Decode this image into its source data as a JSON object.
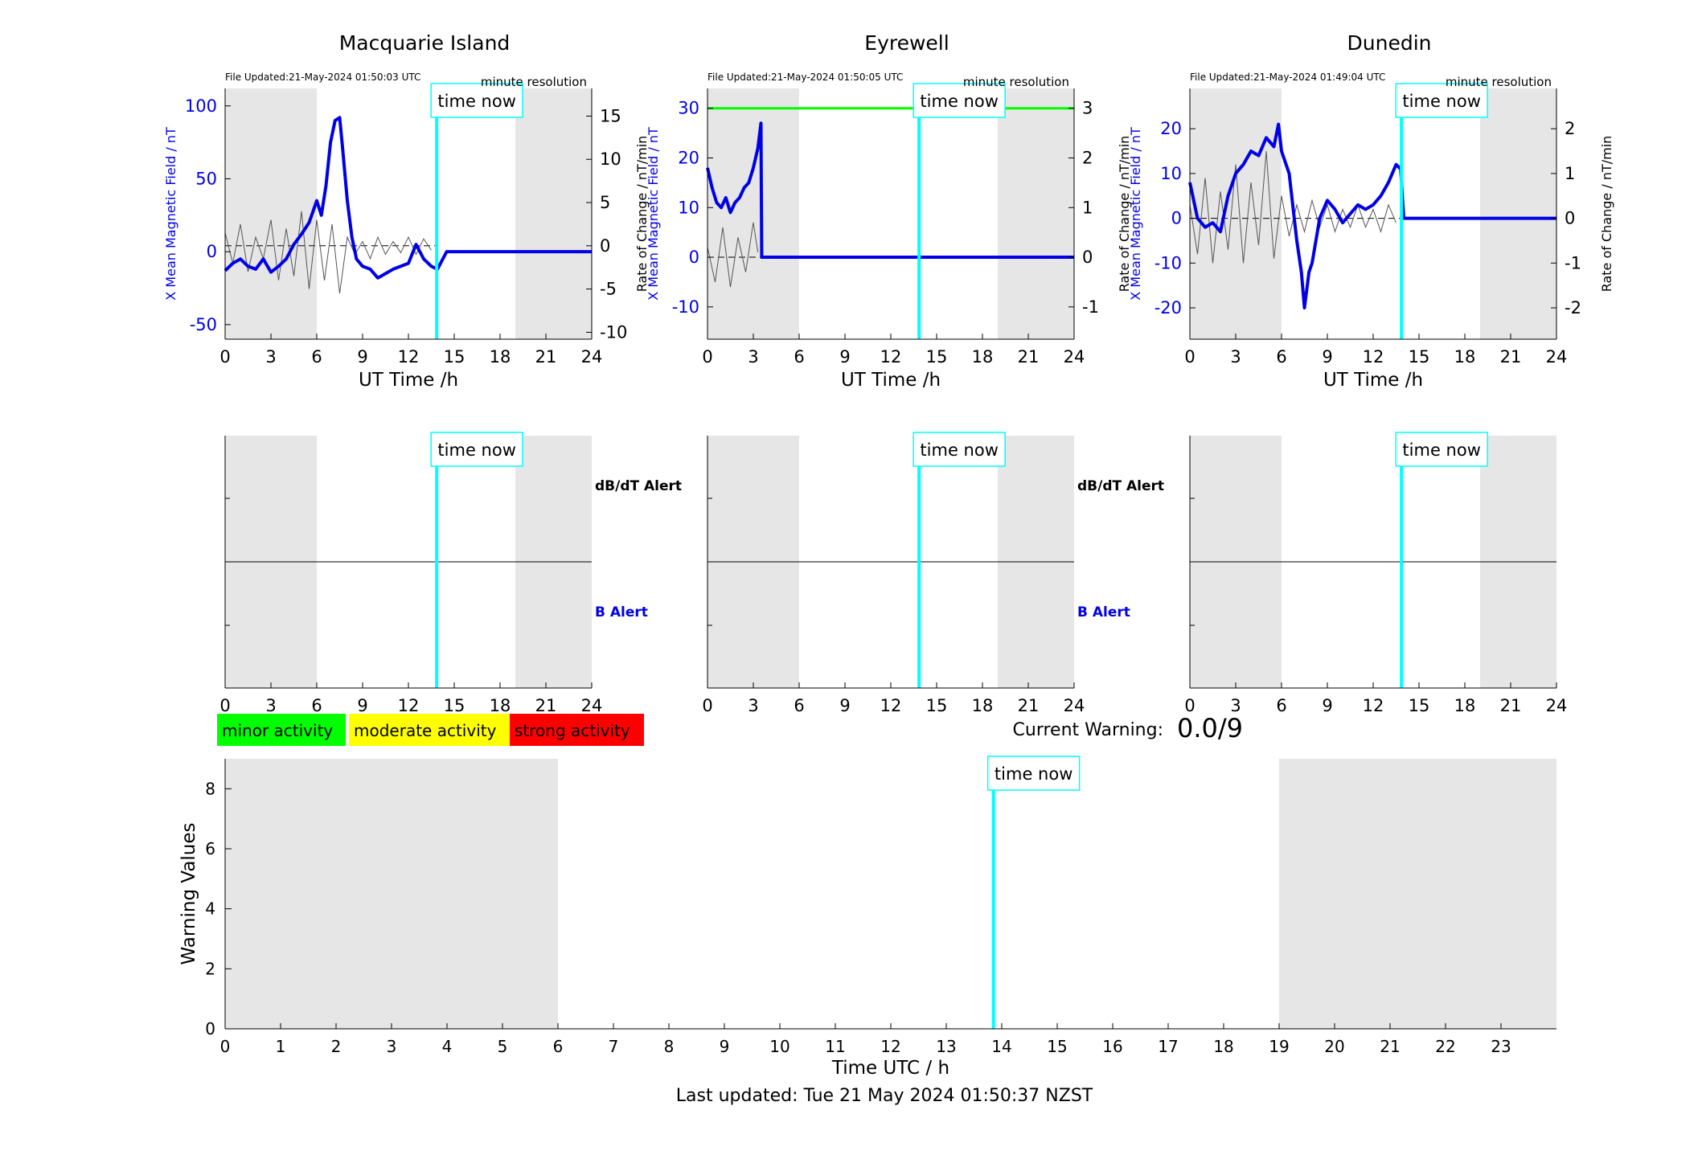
{
  "labels": {
    "time_now": "time now",
    "dbdt_alert": "dB/dT Alert",
    "b_alert": "B Alert",
    "current_warning_label": "Current Warning:",
    "current_warning_value": "0.0/9",
    "last_updated": "Last updated: Tue 21 May 2024 01:50:37 NZST",
    "minute_resolution": "minute resolution",
    "ut_axis": "UT Time /h",
    "left_axis": "X Mean Magnetic Field / nT",
    "right_axis": "Rate of Change / nT/min"
  },
  "activity_legend": [
    {
      "label": "minor activity",
      "color": "#00ff00"
    },
    {
      "label": "moderate activity",
      "color": "#ffff00"
    },
    {
      "label": "strong activity",
      "color": "#ff0000"
    }
  ],
  "colors": {
    "field_line": "#0000e6",
    "rate_line": "#555555",
    "time_now_line": "#00ffff",
    "night_shade": "#e6e6e6",
    "threshold_line": "#00ff00"
  },
  "chart_data": [
    {
      "type": "line",
      "title": "Macquarie Island",
      "file_updated": "File Updated:21-May-2024 01:50:03 UTC",
      "xlabel": "UT Time /h",
      "ylabel": "X Mean Magnetic Field / nT",
      "ylabel_right": "Rate of Change / nT/min",
      "xlim": [
        0,
        24
      ],
      "ylim": [
        -60,
        112
      ],
      "ylim_right": [
        -10.8,
        18.2
      ],
      "xticks": [
        0,
        3,
        6,
        9,
        12,
        15,
        18,
        21,
        24
      ],
      "yticks": [
        -50,
        0,
        50,
        100
      ],
      "yticks_right": [
        -10,
        -5,
        0,
        5,
        10,
        15
      ],
      "night_shading": [
        [
          0,
          6
        ],
        [
          19,
          24
        ]
      ],
      "time_now": 13.85,
      "series": [
        {
          "values_x": [
            0,
            0.5,
            1,
            1.5,
            2,
            2.5,
            3,
            3.5,
            4,
            4.5,
            5,
            5.5,
            6,
            6.3,
            6.6,
            6.9,
            7.2,
            7.5,
            7.7,
            8,
            8.3,
            8.6,
            9,
            9.5,
            10,
            10.5,
            11,
            11.5,
            12,
            12.5,
            13,
            13.5,
            13.9,
            14.5,
            24
          ],
          "values": [
            -13,
            -8,
            -5,
            -10,
            -12,
            -5,
            -14,
            -10,
            -5,
            5,
            12,
            20,
            35,
            25,
            45,
            75,
            90,
            92,
            70,
            35,
            10,
            -5,
            -10,
            -12,
            -18,
            -15,
            -12,
            -10,
            -8,
            5,
            -5,
            -10,
            -12,
            0,
            0
          ]
        },
        {
          "values_x": [
            0,
            0.5,
            1,
            1.5,
            2,
            2.5,
            3,
            3.5,
            4,
            4.5,
            5,
            5.5,
            6,
            6.5,
            7,
            7.5,
            8,
            8.5,
            9,
            9.5,
            10,
            10.5,
            11,
            11.5,
            12,
            12.5,
            13,
            13.5
          ],
          "values": [
            1.5,
            -2,
            2.5,
            -3,
            1,
            -1.5,
            3,
            -4,
            2,
            -3.5,
            4,
            -5,
            3,
            -4,
            2.5,
            -5.5,
            1,
            -1,
            0.5,
            -1.5,
            1,
            -1,
            0.5,
            -0.8,
            1,
            -1,
            0.8,
            -0.5
          ]
        }
      ]
    },
    {
      "type": "line",
      "title": "Eyrewell",
      "file_updated": "File Updated:21-May-2024 01:50:05 UTC",
      "xlabel": "UT Time /h",
      "ylabel": "X Mean Magnetic Field / nT",
      "ylabel_right": "Rate of Change / nT/min",
      "xlim": [
        0,
        24
      ],
      "ylim": [
        -16.5,
        34
      ],
      "ylim_right": [
        -1.65,
        3.4
      ],
      "xticks": [
        0,
        3,
        6,
        9,
        12,
        15,
        18,
        21,
        24
      ],
      "yticks": [
        -10,
        0,
        10,
        20,
        30
      ],
      "yticks_right": [
        -1,
        0,
        1,
        2,
        3
      ],
      "night_shading": [
        [
          0,
          6
        ],
        [
          19,
          24
        ]
      ],
      "time_now": 13.85,
      "threshold": 30,
      "series": [
        {
          "values_x": [
            0,
            0.3,
            0.6,
            0.9,
            1.2,
            1.5,
            1.8,
            2.1,
            2.4,
            2.7,
            3,
            3.3,
            3.5,
            3.55,
            24
          ],
          "values": [
            18,
            14,
            11,
            10,
            12,
            9,
            11,
            12,
            14,
            15,
            18,
            22,
            27,
            0,
            0
          ]
        },
        {
          "values_x": [
            0,
            0.5,
            1,
            1.5,
            2,
            2.5,
            3,
            3.3
          ],
          "values": [
            0.2,
            -0.5,
            0.6,
            -0.6,
            0.4,
            -0.3,
            0.7,
            0.1
          ]
        }
      ]
    },
    {
      "type": "line",
      "title": "Dunedin",
      "file_updated": "File Updated:21-May-2024 01:49:04 UTC",
      "xlabel": "UT Time /h",
      "ylabel": "X Mean Magnetic Field / nT",
      "ylabel_right": "Rate of Change / nT/min",
      "xlim": [
        0,
        24
      ],
      "ylim": [
        -27,
        29
      ],
      "ylim_right": [
        -2.7,
        2.9
      ],
      "xticks": [
        0,
        3,
        6,
        9,
        12,
        15,
        18,
        21,
        24
      ],
      "yticks": [
        -20,
        -10,
        0,
        10,
        20
      ],
      "yticks_right": [
        -2,
        -1,
        0,
        1,
        2
      ],
      "night_shading": [
        [
          0,
          6
        ],
        [
          19,
          24
        ]
      ],
      "time_now": 13.85,
      "series": [
        {
          "values_x": [
            0,
            0.5,
            1,
            1.5,
            2,
            2.5,
            3,
            3.5,
            4,
            4.5,
            5,
            5.5,
            5.8,
            6,
            6.5,
            7,
            7.3,
            7.5,
            7.8,
            8,
            8.5,
            9,
            9.5,
            10,
            10.5,
            11,
            11.5,
            12,
            12.5,
            13,
            13.5,
            13.8,
            14,
            24
          ],
          "values": [
            8,
            0,
            -2,
            -1,
            -3,
            5,
            10,
            12,
            15,
            14,
            18,
            16,
            21,
            15,
            10,
            -5,
            -12,
            -20,
            -12,
            -10,
            0,
            4,
            2,
            -1,
            1,
            3,
            2,
            3,
            5,
            8,
            12,
            11,
            0,
            0
          ]
        },
        {
          "values_x": [
            0,
            0.5,
            1,
            1.5,
            2,
            2.5,
            3,
            3.5,
            4,
            4.5,
            5,
            5.5,
            6,
            6.5,
            7,
            7.5,
            8,
            8.5,
            9,
            9.5,
            10,
            10.5,
            11,
            11.5,
            12,
            12.5,
            13,
            13.5
          ],
          "values": [
            0.3,
            -0.8,
            0.9,
            -1,
            0.6,
            -0.7,
            1.2,
            -1,
            0.8,
            -0.6,
            1.5,
            -0.9,
            0.5,
            -0.4,
            0.3,
            -0.3,
            0.4,
            -0.2,
            0.3,
            -0.3,
            0.2,
            -0.2,
            0.3,
            -0.2,
            0.2,
            -0.3,
            0.3,
            -0.1
          ]
        }
      ]
    },
    {
      "type": "line",
      "title": "",
      "xlabel": "UT Time /h",
      "xlim": [
        0,
        24
      ],
      "xticks": [
        0,
        3,
        6,
        9,
        12,
        15,
        18,
        21,
        24
      ],
      "night_shading": [
        [
          0,
          6
        ],
        [
          19,
          24
        ]
      ],
      "time_now": 13.85,
      "center_line": true,
      "upper_label": "dB/dT Alert",
      "lower_label": "B Alert",
      "series": []
    },
    {
      "type": "line",
      "title": "",
      "xlabel": "UT Time /h",
      "xlim": [
        0,
        24
      ],
      "xticks": [
        0,
        3,
        6,
        9,
        12,
        15,
        18,
        21,
        24
      ],
      "night_shading": [
        [
          0,
          6
        ],
        [
          19,
          24
        ]
      ],
      "time_now": 13.85,
      "center_line": false,
      "upper_label": "dB/dT Alert",
      "lower_label": "B Alert",
      "series": []
    },
    {
      "type": "line",
      "title": "",
      "xlabel": "UT Time /h",
      "xlim": [
        0,
        24
      ],
      "xticks": [
        0,
        3,
        6,
        9,
        12,
        15,
        18,
        21,
        24
      ],
      "night_shading": [
        [
          0,
          6
        ],
        [
          19,
          24
        ]
      ],
      "time_now": 13.85,
      "center_line": true,
      "series": []
    },
    {
      "type": "bar",
      "title": "",
      "xlabel": "Time UTC / h",
      "ylabel": "Warning Values",
      "xlim": [
        0,
        24
      ],
      "ylim": [
        0,
        9
      ],
      "xticks": [
        0,
        1,
        2,
        3,
        4,
        5,
        6,
        7,
        8,
        9,
        10,
        11,
        12,
        13,
        14,
        15,
        16,
        17,
        18,
        19,
        20,
        21,
        22,
        23
      ],
      "yticks": [
        0,
        2,
        4,
        6,
        8
      ],
      "night_shading": [
        [
          0,
          6
        ],
        [
          19,
          24
        ]
      ],
      "time_now": 13.85,
      "values": []
    }
  ]
}
